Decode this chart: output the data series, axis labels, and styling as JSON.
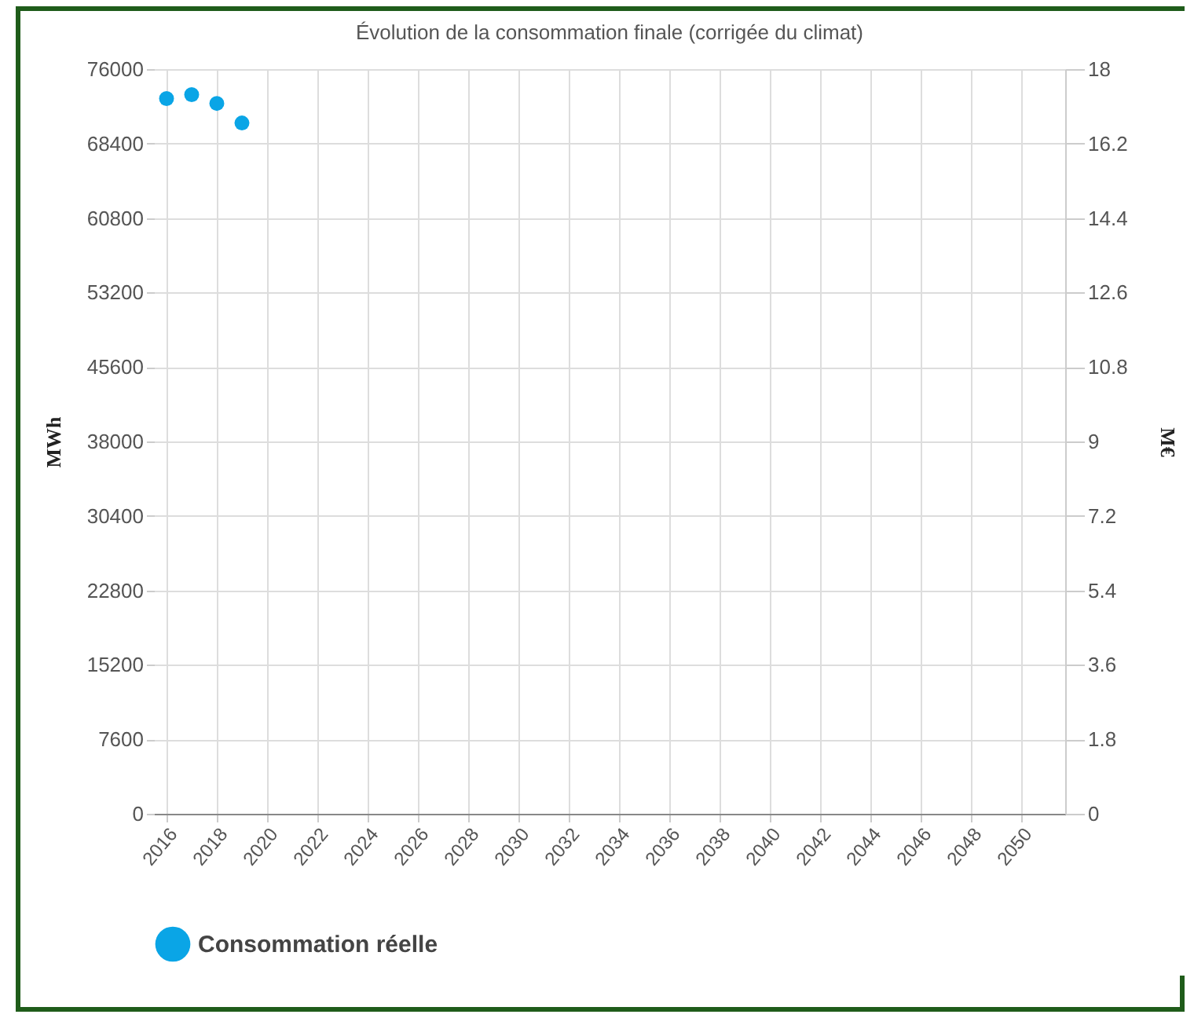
{
  "chart_data": {
    "type": "scatter",
    "title": "Évolution de la consommation finale (corrigée du climat)",
    "ylabel": "MWh",
    "y2label": "M€",
    "x": [
      2016,
      2017,
      2018,
      2019
    ],
    "series": [
      {
        "name": "Consommation réelle",
        "color": "#0aa5e6",
        "values": [
          73000,
          73400,
          72500,
          70500
        ]
      }
    ],
    "xlim": [
      2015.5,
      2051.75
    ],
    "xticks": [
      2016,
      2018,
      2020,
      2022,
      2024,
      2026,
      2028,
      2030,
      2032,
      2034,
      2036,
      2038,
      2040,
      2042,
      2044,
      2046,
      2048,
      2050
    ],
    "ylim": [
      0,
      76000
    ],
    "yticks": [
      0,
      7600,
      15200,
      22800,
      30400,
      38000,
      45600,
      53200,
      60800,
      68400,
      76000
    ],
    "y2lim": [
      0,
      18
    ],
    "y2ticks": [
      0,
      1.8,
      3.6,
      5.4,
      7.2,
      9,
      10.8,
      12.6,
      14.4,
      16.2,
      18
    ],
    "grid": true,
    "legend": "bottom left",
    "marker": "circle"
  }
}
